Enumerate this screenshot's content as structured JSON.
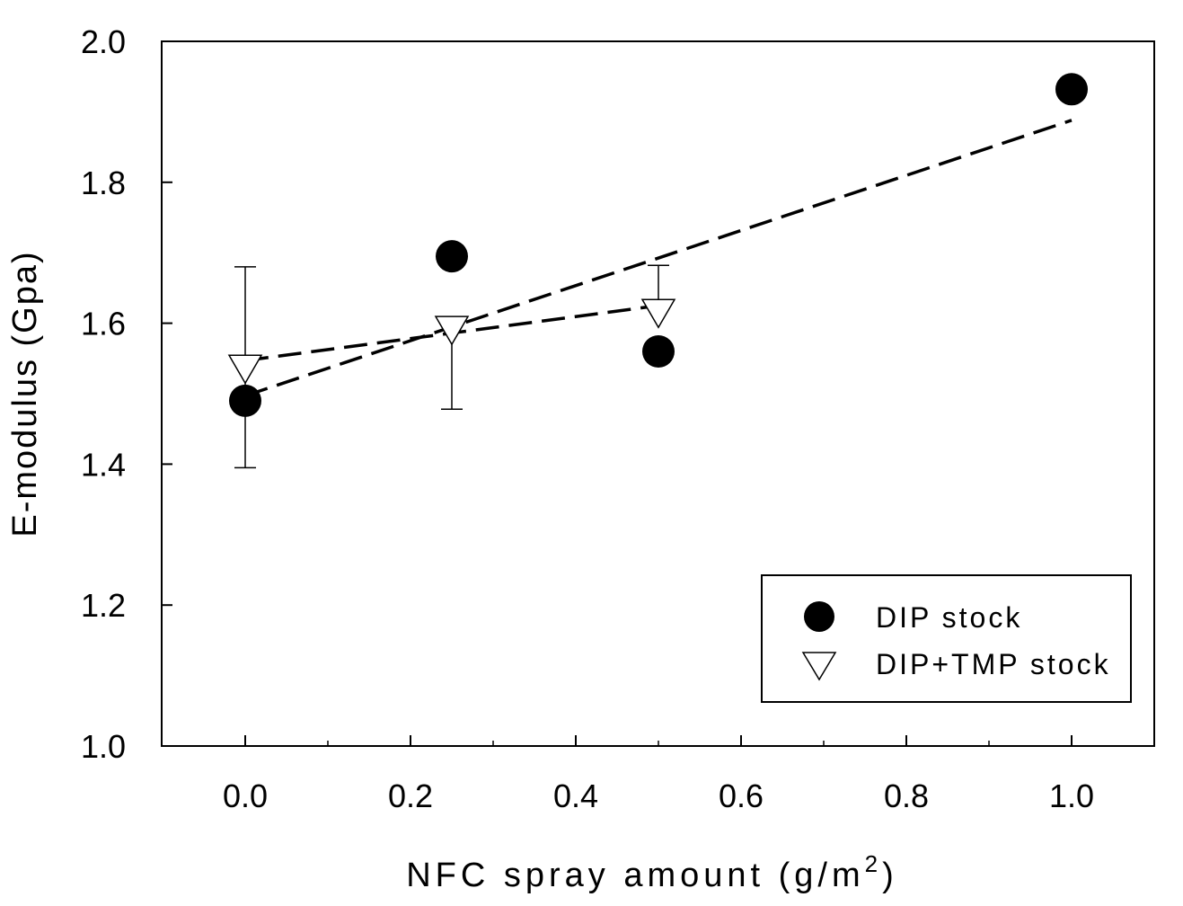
{
  "chart_data": {
    "type": "scatter",
    "title": "",
    "xlabel": "NFC spray amount (g/m",
    "xlabel_superscript": "2",
    "xlabel_suffix": ")",
    "ylabel": "E-modulus (Gpa)",
    "xlim": [
      -0.1,
      1.1
    ],
    "ylim": [
      1.0,
      2.0
    ],
    "x_ticks": [
      "0.0",
      "0.2",
      "0.4",
      "0.6",
      "0.8",
      "1.0"
    ],
    "y_ticks": [
      "1.0",
      "1.2",
      "1.4",
      "1.6",
      "1.8",
      "2.0"
    ],
    "grid": false,
    "legend_position": "bottom-right",
    "series": [
      {
        "name": "DIP stock",
        "marker": "filled-circle",
        "color": "#000000",
        "x": [
          0.0,
          0.25,
          0.5,
          1.0
        ],
        "y": [
          1.49,
          1.695,
          1.56,
          1.932
        ],
        "trend": {
          "style": "dashed",
          "x": [
            0.0,
            1.0
          ],
          "y": [
            1.497,
            1.888
          ]
        }
      },
      {
        "name": "DIP+TMP stock",
        "marker": "open-triangle-down",
        "color": "#000000",
        "x": [
          0.0,
          0.25,
          0.5
        ],
        "y": [
          1.538,
          1.593,
          1.617
        ],
        "error": [
          [
            1.395,
            1.68
          ],
          [
            1.478,
            null
          ],
          [
            null,
            1.682
          ]
        ],
        "trend": {
          "style": "dashed",
          "x": [
            0.0,
            0.5
          ],
          "y": [
            1.547,
            1.625
          ]
        }
      }
    ]
  }
}
